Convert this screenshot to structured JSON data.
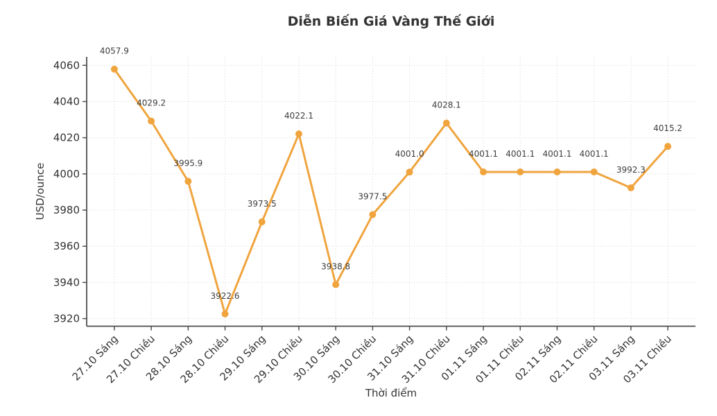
{
  "chart_data": {
    "type": "line",
    "title": "Diễn Biến Giá Vàng Thế Giới",
    "xlabel": "Thời điểm",
    "ylabel": "USD/ounce",
    "categories": [
      "27.10 Sáng",
      "27.10 Chiều",
      "28.10 Sáng",
      "28.10 Chiều",
      "29.10 Sáng",
      "29.10 Chiều",
      "30.10 Sáng",
      "30.10 Chiều",
      "31.10 Sáng",
      "31.10 Chiều",
      "01.11 Sáng",
      "01.11 Chiều",
      "02.11 Sáng",
      "02.11 Chiều",
      "03.11 Sáng",
      "03.11 Chiều"
    ],
    "values": [
      4057.9,
      4029.2,
      3995.9,
      3922.6,
      3973.5,
      4022.1,
      3938.8,
      3977.5,
      4001.0,
      4028.1,
      4001.1,
      4001.1,
      4001.1,
      4001.1,
      3992.3,
      4015.2
    ],
    "point_labels": [
      "4057.9",
      "4029.2",
      "3995.9",
      "3922.6",
      "3973.5",
      "4022.1",
      "3938.8",
      "3977.5",
      "4001.0",
      "4028.1",
      "4001.1",
      "4001.1",
      "4001.1",
      "4001.1",
      "3992.3",
      "4015.2"
    ],
    "y_ticks": [
      3920,
      3940,
      3960,
      3980,
      4000,
      4020,
      4040,
      4060
    ],
    "ylim": [
      3915.8,
      4064.7
    ],
    "xlim": [
      -0.75,
      15.75
    ],
    "grid": true,
    "legend_position": "none",
    "marker_style": "circle",
    "x_tick_rotation": 45,
    "line_color": "#F0A43E",
    "marker_color": "#F0A43E",
    "grid_color": "#E0E0E0",
    "axis_color": "#4D4D4D",
    "text_color": "#333333",
    "annotation_color": "#3D3D3D",
    "background_color": "#FFFFFF"
  }
}
